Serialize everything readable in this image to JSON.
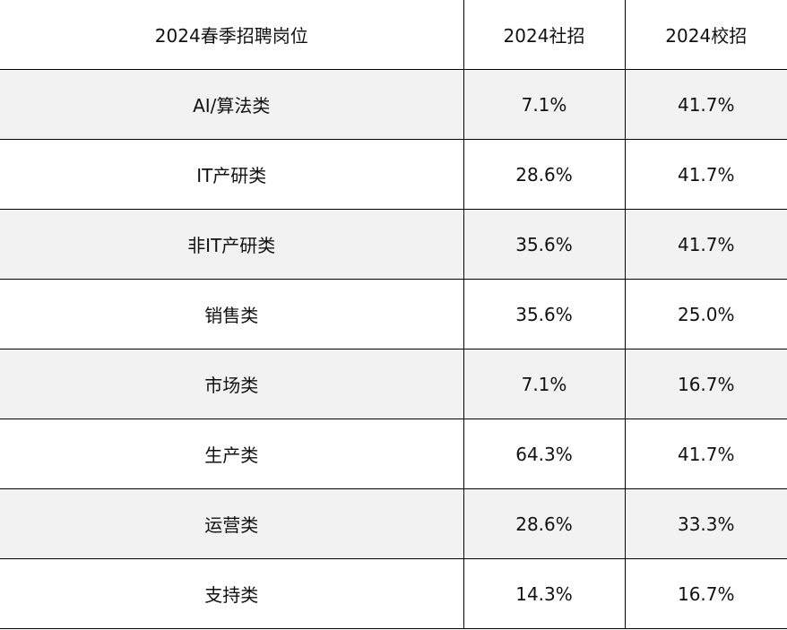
{
  "table": {
    "header": [
      "2024春季招聘岗位",
      "2024社招",
      "2024校招"
    ],
    "rows": [
      [
        "AI/算法类",
        "7.1%",
        "41.7%"
      ],
      [
        "IT产研类",
        "28.6%",
        "41.7%"
      ],
      [
        "非IT产研类",
        "35.6%",
        "41.7%"
      ],
      [
        "销售类",
        "35.6%",
        "25.0%"
      ],
      [
        "市场类",
        "7.1%",
        "16.7%"
      ],
      [
        "生产类",
        "64.3%",
        "41.7%"
      ],
      [
        "运营类",
        "28.6%",
        "33.3%"
      ],
      [
        "支持类",
        "14.3%",
        "16.7%"
      ]
    ]
  }
}
